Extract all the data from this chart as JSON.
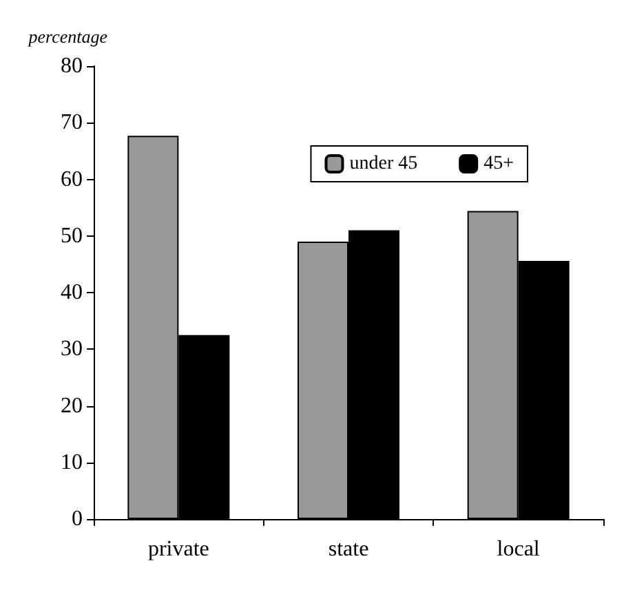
{
  "chart_data": {
    "type": "bar",
    "ylabel": "percentage",
    "categories": [
      "private",
      "state",
      "local"
    ],
    "series": [
      {
        "name": "under 45",
        "color": "#999999",
        "values": [
          67.7,
          49,
          54.4
        ]
      },
      {
        "name": "45+",
        "color": "#000000",
        "values": [
          32.5,
          51,
          45.6
        ]
      }
    ],
    "ylim": [
      0,
      80
    ],
    "yticks": [
      0,
      10,
      20,
      30,
      40,
      50,
      60,
      70,
      80
    ],
    "grid": false,
    "legend": "top right"
  }
}
